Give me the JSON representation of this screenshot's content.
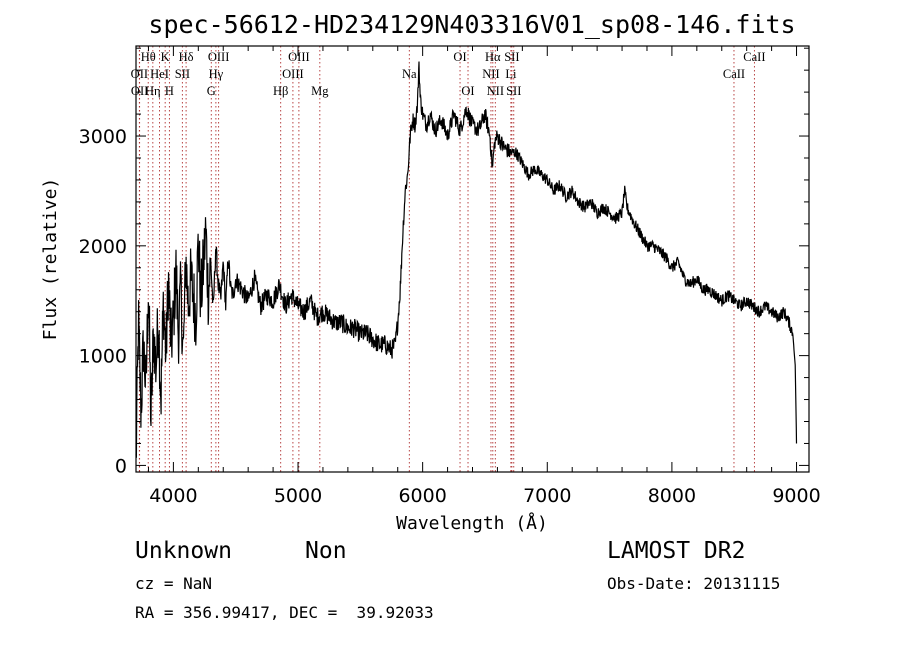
{
  "chart_data": {
    "type": "line",
    "title": "spec-56612-HD234129N403316V01_sp08-146.fits",
    "xlabel": "Wavelength (Å)",
    "ylabel": "Flux (relative)",
    "xlim": [
      3700,
      9100
    ],
    "ylim": [
      -60,
      3820
    ],
    "x_ticks": [
      4000,
      5000,
      6000,
      7000,
      8000,
      9000
    ],
    "y_ticks": [
      0,
      1000,
      2000,
      3000
    ],
    "series": [
      {
        "x": [
          3700,
          3720,
          3740,
          3760,
          3780,
          3800,
          3820,
          3840,
          3860,
          3880,
          3900,
          3920,
          3940,
          3960,
          3980,
          4000,
          4020,
          4040,
          4060,
          4080,
          4100,
          4120,
          4140,
          4160,
          4180,
          4200,
          4220,
          4240,
          4260,
          4280,
          4300,
          4320,
          4340,
          4360,
          4380,
          4400,
          4420,
          4440,
          4460,
          4480,
          4500,
          4550,
          4600,
          4650,
          4700,
          4750,
          4800,
          4850,
          4900,
          4950,
          5000,
          5050,
          5100,
          5150,
          5200,
          5250,
          5300,
          5350,
          5400,
          5450,
          5500,
          5550,
          5600,
          5650,
          5700,
          5750,
          5780,
          5800,
          5820,
          5840,
          5860,
          5880,
          5900,
          5920,
          5940,
          5960,
          5970,
          5980,
          6000,
          6030,
          6060,
          6100,
          6150,
          6200,
          6250,
          6300,
          6350,
          6400,
          6450,
          6500,
          6540,
          6560,
          6570,
          6580,
          6600,
          6650,
          6700,
          6750,
          6800,
          6850,
          6900,
          6950,
          7000,
          7050,
          7100,
          7150,
          7200,
          7250,
          7300,
          7350,
          7400,
          7450,
          7500,
          7550,
          7600,
          7620,
          7640,
          7660,
          7680,
          7700,
          7750,
          7800,
          7850,
          7900,
          7950,
          8000,
          8050,
          8100,
          8150,
          8200,
          8250,
          8300,
          8350,
          8400,
          8450,
          8500,
          8550,
          8600,
          8650,
          8700,
          8750,
          8800,
          8850,
          8900,
          8940,
          8970,
          8990,
          9000
        ],
        "y": [
          0,
          1300,
          500,
          1100,
          700,
          1650,
          400,
          1200,
          900,
          1350,
          600,
          1500,
          1000,
          1700,
          1100,
          1300,
          1800,
          1200,
          1600,
          1000,
          1900,
          1450,
          1700,
          1550,
          1350,
          2050,
          1500,
          1800,
          2150,
          1550,
          1850,
          1400,
          2000,
          1650,
          1500,
          1850,
          1450,
          1900,
          1600,
          1550,
          1700,
          1600,
          1500,
          1700,
          1450,
          1550,
          1500,
          1650,
          1450,
          1550,
          1450,
          1400,
          1500,
          1350,
          1400,
          1350,
          1300,
          1300,
          1250,
          1250,
          1200,
          1200,
          1150,
          1100,
          1100,
          1050,
          1100,
          1300,
          1600,
          2100,
          2500,
          2650,
          3000,
          3150,
          3100,
          3300,
          3700,
          3350,
          3200,
          3100,
          3200,
          3050,
          3150,
          3000,
          3200,
          3050,
          3250,
          3100,
          3050,
          3200,
          3000,
          2700,
          2850,
          2950,
          3000,
          2900,
          2850,
          2850,
          2750,
          2650,
          2700,
          2650,
          2600,
          2500,
          2550,
          2450,
          2500,
          2400,
          2350,
          2400,
          2300,
          2350,
          2300,
          2250,
          2300,
          2500,
          2350,
          2300,
          2250,
          2200,
          2100,
          2000,
          2000,
          1950,
          1900,
          1800,
          1850,
          1700,
          1650,
          1700,
          1600,
          1600,
          1550,
          1500,
          1550,
          1500,
          1450,
          1500,
          1450,
          1400,
          1450,
          1400,
          1350,
          1400,
          1300,
          1200,
          900,
          200
        ]
      }
    ],
    "lines": [
      {
        "label": "Hθ",
        "x": 3798,
        "row": 0
      },
      {
        "label": "OII",
        "x": 3727,
        "row": 1
      },
      {
        "label": "OII",
        "x": 3729,
        "row": 2
      },
      {
        "label": "Hη",
        "x": 3835,
        "row": 2
      },
      {
        "label": "HeI",
        "x": 3889,
        "row": 1
      },
      {
        "label": "K",
        "x": 3934,
        "row": 0
      },
      {
        "label": "H",
        "x": 3968,
        "row": 2
      },
      {
        "label": "SII",
        "x": 4072,
        "row": 1
      },
      {
        "label": "Hδ",
        "x": 4102,
        "row": 0
      },
      {
        "label": "OIII",
        "x": 4363,
        "row": 0
      },
      {
        "label": "Hγ",
        "x": 4341,
        "row": 1
      },
      {
        "label": "G",
        "x": 4304,
        "row": 2
      },
      {
        "label": "Hβ",
        "x": 4861,
        "row": 2
      },
      {
        "label": "OIII",
        "x": 5007,
        "row": 0
      },
      {
        "label": "OIII",
        "x": 4959,
        "row": 1
      },
      {
        "label": "Mg",
        "x": 5175,
        "row": 2
      },
      {
        "label": "Na",
        "x": 5893,
        "row": 1
      },
      {
        "label": "OI",
        "x": 6300,
        "row": 0
      },
      {
        "label": "OI",
        "x": 6364,
        "row": 2
      },
      {
        "label": "Hα",
        "x": 6563,
        "row": 0
      },
      {
        "label": "NII",
        "x": 6548,
        "row": 1
      },
      {
        "label": "NII",
        "x": 6583,
        "row": 2
      },
      {
        "label": "Li",
        "x": 6708,
        "row": 1
      },
      {
        "label": "SII",
        "x": 6716,
        "row": 0
      },
      {
        "label": "SII",
        "x": 6731,
        "row": 2
      },
      {
        "label": "CaII",
        "x": 8498,
        "row": 1
      },
      {
        "label": "CaII",
        "x": 8662,
        "row": 0
      }
    ]
  },
  "info": {
    "class_label": "Unknown",
    "subclass_label": "Non",
    "survey": "LAMOST DR2",
    "cz": "cz = NaN",
    "obs_date": "Obs-Date: 20131115",
    "coords": "RA = 356.99417, DEC =  39.92033"
  }
}
